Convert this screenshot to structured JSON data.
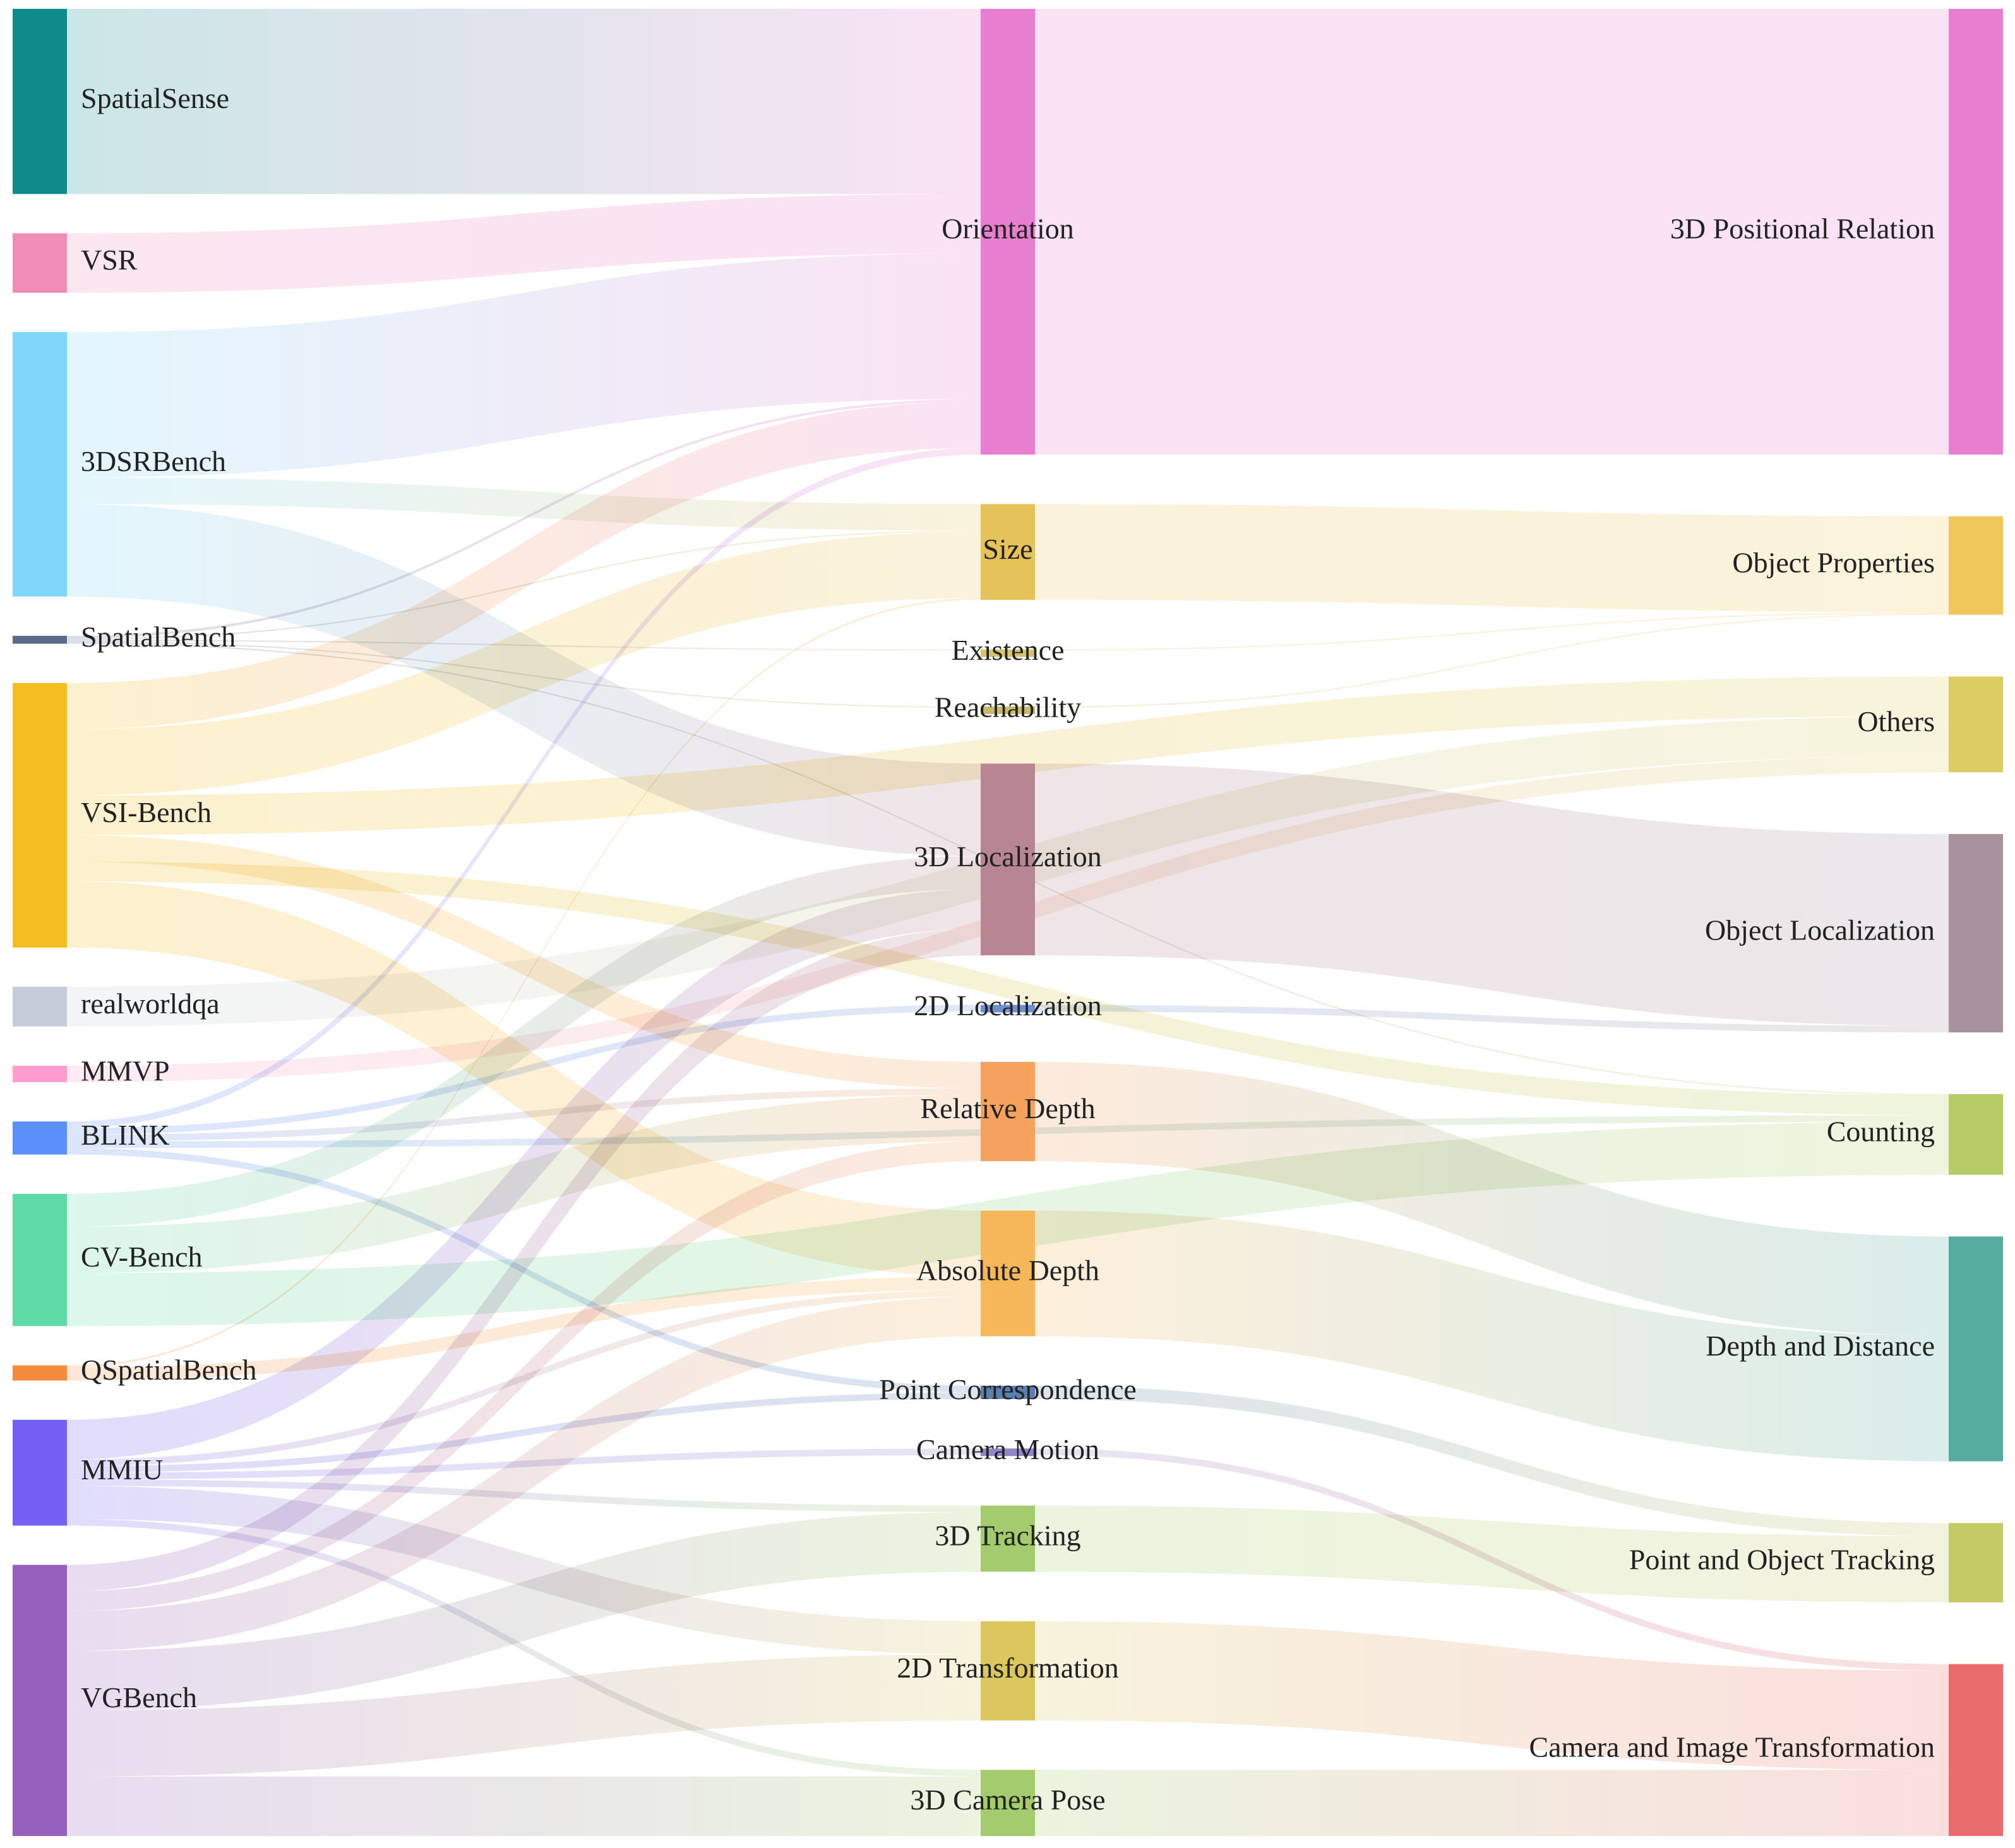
{
  "chart_data": {
    "type": "sankey",
    "title": "",
    "columns": [
      [
        "SpatialSense",
        "VSR",
        "3DSRBench",
        "SpatialBench",
        "VSI-Bench",
        "realworldqa",
        "MMVP",
        "BLINK",
        "CV-Bench",
        "QSpatialBench",
        "MMIU",
        "VGBench"
      ],
      [
        "Orientation",
        "Size",
        "Existence",
        "Reachability",
        "3D Localization",
        "2D Localization",
        "Relative Depth",
        "Absolute Depth",
        "Point Correspondence",
        "Camera Motion",
        "3D Tracking",
        "2D Transformation",
        "3D Camera Pose"
      ],
      [
        "3D Positional Relation",
        "Object Properties",
        "Others",
        "Object Localization",
        "Counting",
        "Depth and Distance",
        "Point and Object Tracking",
        "Camera and Image Transformation"
      ]
    ],
    "nodes": [
      {
        "name": "SpatialSense",
        "color": "#0f8b8b"
      },
      {
        "name": "VSR",
        "color": "#ef8db6"
      },
      {
        "name": "3DSRBench",
        "color": "#7ed6f8"
      },
      {
        "name": "SpatialBench",
        "color": "#5a6a8a"
      },
      {
        "name": "VSI-Bench",
        "color": "#f5bd1f"
      },
      {
        "name": "realworldqa",
        "color": "#c5cbd8"
      },
      {
        "name": "MMVP",
        "color": "#ff9ccf"
      },
      {
        "name": "BLINK",
        "color": "#5b8ff9"
      },
      {
        "name": "CV-Bench",
        "color": "#5fdaa6"
      },
      {
        "name": "QSpatialBench",
        "color": "#f48a3c"
      },
      {
        "name": "MMIU",
        "color": "#7460f5"
      },
      {
        "name": "VGBench",
        "color": "#9460bc"
      },
      {
        "name": "Orientation",
        "color": "#e87ecf"
      },
      {
        "name": "Size",
        "color": "#e6c25a"
      },
      {
        "name": "Existence",
        "color": "#d9c26e"
      },
      {
        "name": "Reachability",
        "color": "#c9b96e"
      },
      {
        "name": "3D Localization",
        "color": "#b88692"
      },
      {
        "name": "2D Localization",
        "color": "#6f8fd0"
      },
      {
        "name": "Relative Depth",
        "color": "#f4a25e"
      },
      {
        "name": "Absolute Depth",
        "color": "#f5b75a"
      },
      {
        "name": "Point Correspondence",
        "color": "#5b7fae"
      },
      {
        "name": "Camera Motion",
        "color": "#8f86c8"
      },
      {
        "name": "3D Tracking",
        "color": "#a4cc6e"
      },
      {
        "name": "2D Transformation",
        "color": "#dbc75e"
      },
      {
        "name": "3D Camera Pose",
        "color": "#a4cc6e"
      },
      {
        "name": "3D Positional Relation",
        "color": "#e87ecf"
      },
      {
        "name": "Object Properties",
        "color": "#efc75a"
      },
      {
        "name": "Others",
        "color": "#dccd62"
      },
      {
        "name": "Object Localization",
        "color": "#a7929e"
      },
      {
        "name": "Counting",
        "color": "#b5cc66"
      },
      {
        "name": "Depth and Distance",
        "color": "#55ada0"
      },
      {
        "name": "Point and Object Tracking",
        "color": "#c5c966"
      },
      {
        "name": "Camera and Image Transformation",
        "color": "#e96b6b"
      }
    ],
    "links": [
      {
        "source": "SpatialSense",
        "target": "Orientation",
        "value": 28
      },
      {
        "source": "VSR",
        "target": "Orientation",
        "value": 9
      },
      {
        "source": "3DSRBench",
        "target": "Orientation",
        "value": 22
      },
      {
        "source": "3DSRBench",
        "target": "Size",
        "value": 4
      },
      {
        "source": "3DSRBench",
        "target": "3D Localization",
        "value": 14
      },
      {
        "source": "SpatialBench",
        "target": "Orientation",
        "value": 0.4
      },
      {
        "source": "SpatialBench",
        "target": "Size",
        "value": 0.2
      },
      {
        "source": "SpatialBench",
        "target": "Existence",
        "value": 0.2
      },
      {
        "source": "SpatialBench",
        "target": "Reachability",
        "value": 0.2
      },
      {
        "source": "SpatialBench",
        "target": "Counting",
        "value": 0.2
      },
      {
        "source": "VSI-Bench",
        "target": "Orientation",
        "value": 7
      },
      {
        "source": "VSI-Bench",
        "target": "Size",
        "value": 10
      },
      {
        "source": "VSI-Bench",
        "target": "Others",
        "value": 6
      },
      {
        "source": "VSI-Bench",
        "target": "Counting",
        "value": 3
      },
      {
        "source": "VSI-Bench",
        "target": "Relative Depth",
        "value": 4
      },
      {
        "source": "VSI-Bench",
        "target": "Absolute Depth",
        "value": 10
      },
      {
        "source": "realworldqa",
        "target": "Others",
        "value": 6
      },
      {
        "source": "MMVP",
        "target": "Others",
        "value": 2.5
      },
      {
        "source": "BLINK",
        "target": "Orientation",
        "value": 1
      },
      {
        "source": "BLINK",
        "target": "2D Localization",
        "value": 1
      },
      {
        "source": "BLINK",
        "target": "Relative Depth",
        "value": 1
      },
      {
        "source": "BLINK",
        "target": "Counting",
        "value": 1
      },
      {
        "source": "BLINK",
        "target": "Point Correspondence",
        "value": 1
      },
      {
        "source": "CV-Bench",
        "target": "3D Localization",
        "value": 5
      },
      {
        "source": "CV-Bench",
        "target": "Relative Depth",
        "value": 7
      },
      {
        "source": "CV-Bench",
        "target": "Counting",
        "value": 8
      },
      {
        "source": "QSpatialBench",
        "target": "Size",
        "value": 0.3
      },
      {
        "source": "QSpatialBench",
        "target": "Absolute Depth",
        "value": 2
      },
      {
        "source": "MMIU",
        "target": "3D Localization",
        "value": 6
      },
      {
        "source": "MMIU",
        "target": "Absolute Depth",
        "value": 1
      },
      {
        "source": "MMIU",
        "target": "Point Correspondence",
        "value": 1
      },
      {
        "source": "MMIU",
        "target": "Camera Motion",
        "value": 1
      },
      {
        "source": "MMIU",
        "target": "3D Tracking",
        "value": 1
      },
      {
        "source": "MMIU",
        "target": "2D Transformation",
        "value": 5
      },
      {
        "source": "MMIU",
        "target": "3D Camera Pose",
        "value": 1
      },
      {
        "source": "VGBench",
        "target": "3D Localization",
        "value": 4
      },
      {
        "source": "VGBench",
        "target": "Relative Depth",
        "value": 3
      },
      {
        "source": "VGBench",
        "target": "Absolute Depth",
        "value": 6
      },
      {
        "source": "VGBench",
        "target": "3D Tracking",
        "value": 9
      },
      {
        "source": "VGBench",
        "target": "2D Transformation",
        "value": 10
      },
      {
        "source": "VGBench",
        "target": "3D Camera Pose",
        "value": 9
      },
      {
        "source": "Orientation",
        "target": "3D Positional Relation",
        "value": 67.4
      },
      {
        "source": "Size",
        "target": "Object Properties",
        "value": 14.5
      },
      {
        "source": "Existence",
        "target": "Object Properties",
        "value": 0.2
      },
      {
        "source": "Reachability",
        "target": "Object Properties",
        "value": 0.2
      },
      {
        "source": "3D Localization",
        "target": "Object Localization",
        "value": 29
      },
      {
        "source": "2D Localization",
        "target": "Object Localization",
        "value": 1
      },
      {
        "source": "Relative Depth",
        "target": "Depth and Distance",
        "value": 15
      },
      {
        "source": "Absolute Depth",
        "target": "Depth and Distance",
        "value": 19
      },
      {
        "source": "Point Correspondence",
        "target": "Point and Object Tracking",
        "value": 2
      },
      {
        "source": "Camera Motion",
        "target": "Camera and Image Transformation",
        "value": 1
      },
      {
        "source": "3D Tracking",
        "target": "Point and Object Tracking",
        "value": 10
      },
      {
        "source": "2D Transformation",
        "target": "Camera and Image Transformation",
        "value": 15
      },
      {
        "source": "3D Camera Pose",
        "target": "Camera and Image Transformation",
        "value": 10
      }
    ]
  }
}
